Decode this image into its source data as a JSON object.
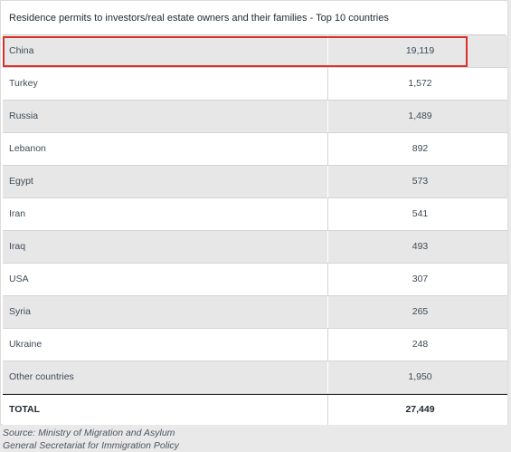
{
  "table": {
    "title": "Residence permits to investors/real estate owners and their families - Top 10 countries",
    "rows": [
      {
        "country": "China",
        "value": "19,119"
      },
      {
        "country": "Turkey",
        "value": "1,572"
      },
      {
        "country": "Russia",
        "value": "1,489"
      },
      {
        "country": "Lebanon",
        "value": "892"
      },
      {
        "country": "Egypt",
        "value": "573"
      },
      {
        "country": "Iran",
        "value": "541"
      },
      {
        "country": "Iraq",
        "value": "493"
      },
      {
        "country": "USA",
        "value": "307"
      },
      {
        "country": "Syria",
        "value": "265"
      },
      {
        "country": "Ukraine",
        "value": "248"
      },
      {
        "country": "Other countries",
        "value": "1,950"
      }
    ],
    "total": {
      "label": "TOTAL",
      "value": "27,449"
    },
    "highlighted_row": "China",
    "highlight_color": "#d9302c"
  },
  "source": {
    "line1": "Source: Ministry of Migration and Asylum",
    "line2": "General Secretariat for Immigration Policy"
  }
}
